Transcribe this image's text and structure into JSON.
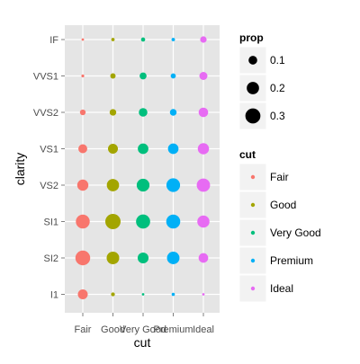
{
  "chart_data": {
    "type": "scatter",
    "title": "",
    "xlabel": "cut",
    "ylabel": "clarity",
    "x_categories": [
      "Fair",
      "Good",
      "Very Good",
      "Premium",
      "Ideal"
    ],
    "y_categories": [
      "I1",
      "SI2",
      "SI1",
      "VS2",
      "VS1",
      "VVS2",
      "VVS1",
      "IF"
    ],
    "size_variable": "prop",
    "size_legend": {
      "title": "prop",
      "breaks": [
        0.1,
        0.2,
        0.3
      ],
      "labels": [
        "0.1",
        "0.2",
        "0.3"
      ]
    },
    "color_legend": {
      "title": "cut",
      "entries": [
        "Fair",
        "Good",
        "Very Good",
        "Premium",
        "Ideal"
      ]
    },
    "colors": {
      "Fair": "#F8766D",
      "Good": "#A3A500",
      "Very Good": "#00BF7D",
      "Premium": "#00B0F6",
      "Ideal": "#E76BF3"
    },
    "legend_position": "right",
    "grid": true,
    "points": [
      {
        "cut": "Fair",
        "clarity": "I1",
        "prop": 0.13
      },
      {
        "cut": "Fair",
        "clarity": "SI2",
        "prop": 0.29
      },
      {
        "cut": "Fair",
        "clarity": "SI1",
        "prop": 0.255
      },
      {
        "cut": "Fair",
        "clarity": "VS2",
        "prop": 0.165
      },
      {
        "cut": "Fair",
        "clarity": "VS1",
        "prop": 0.105
      },
      {
        "cut": "Fair",
        "clarity": "VVS2",
        "prop": 0.043
      },
      {
        "cut": "Fair",
        "clarity": "VVS1",
        "prop": 0.011
      },
      {
        "cut": "Fair",
        "clarity": "IF",
        "prop": 0.006
      },
      {
        "cut": "Good",
        "clarity": "I1",
        "prop": 0.02
      },
      {
        "cut": "Good",
        "clarity": "SI2",
        "prop": 0.21
      },
      {
        "cut": "Good",
        "clarity": "SI1",
        "prop": 0.31
      },
      {
        "cut": "Good",
        "clarity": "VS2",
        "prop": 0.2
      },
      {
        "cut": "Good",
        "clarity": "VS1",
        "prop": 0.13
      },
      {
        "cut": "Good",
        "clarity": "VVS2",
        "prop": 0.058
      },
      {
        "cut": "Good",
        "clarity": "VVS1",
        "prop": 0.038
      },
      {
        "cut": "Good",
        "clarity": "IF",
        "prop": 0.015
      },
      {
        "cut": "Very Good",
        "clarity": "I1",
        "prop": 0.007
      },
      {
        "cut": "Very Good",
        "clarity": "SI2",
        "prop": 0.157
      },
      {
        "cut": "Very Good",
        "clarity": "SI1",
        "prop": 0.264
      },
      {
        "cut": "Very Good",
        "clarity": "VS2",
        "prop": 0.218
      },
      {
        "cut": "Very Good",
        "clarity": "VS1",
        "prop": 0.148
      },
      {
        "cut": "Very Good",
        "clarity": "VVS2",
        "prop": 0.098
      },
      {
        "cut": "Very Good",
        "clarity": "VVS1",
        "prop": 0.064
      },
      {
        "cut": "Very Good",
        "clarity": "IF",
        "prop": 0.023
      },
      {
        "cut": "Premium",
        "clarity": "I1",
        "prop": 0.014
      },
      {
        "cut": "Premium",
        "clarity": "SI2",
        "prop": 0.208
      },
      {
        "cut": "Premium",
        "clarity": "SI1",
        "prop": 0.26
      },
      {
        "cut": "Premium",
        "clarity": "VS2",
        "prop": 0.247
      },
      {
        "cut": "Premium",
        "clarity": "VS1",
        "prop": 0.147
      },
      {
        "cut": "Premium",
        "clarity": "VVS2",
        "prop": 0.06
      },
      {
        "cut": "Premium",
        "clarity": "VVS1",
        "prop": 0.035
      },
      {
        "cut": "Premium",
        "clarity": "IF",
        "prop": 0.016
      },
      {
        "cut": "Ideal",
        "clarity": "I1",
        "prop": 0.007
      },
      {
        "cut": "Ideal",
        "clarity": "SI2",
        "prop": 0.122
      },
      {
        "cut": "Ideal",
        "clarity": "SI1",
        "prop": 0.198
      },
      {
        "cut": "Ideal",
        "clarity": "VS2",
        "prop": 0.236
      },
      {
        "cut": "Ideal",
        "clarity": "VS1",
        "prop": 0.167
      },
      {
        "cut": "Ideal",
        "clarity": "VVS2",
        "prop": 0.12
      },
      {
        "cut": "Ideal",
        "clarity": "VVS1",
        "prop": 0.086
      },
      {
        "cut": "Ideal",
        "clarity": "IF",
        "prop": 0.056
      }
    ]
  }
}
